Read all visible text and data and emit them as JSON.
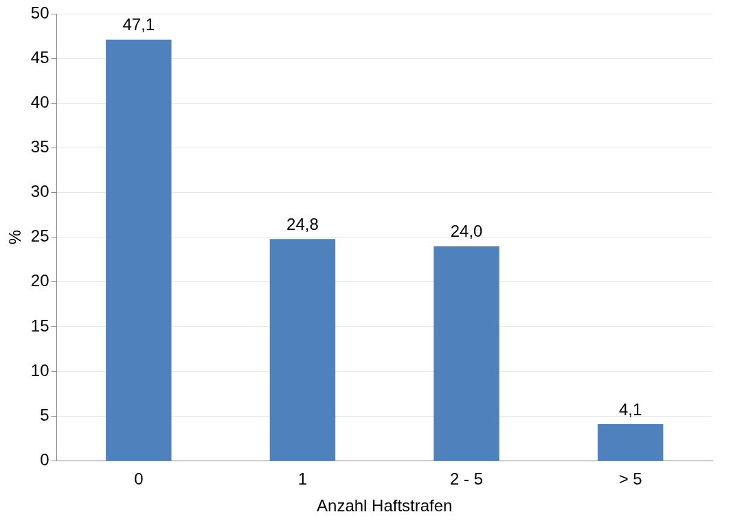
{
  "chart_data": {
    "type": "bar",
    "xlabel": "Anzahl Haftstrafen",
    "ylabel": "%",
    "categories": [
      "0",
      "1",
      "2 - 5",
      "> 5"
    ],
    "values": [
      47.1,
      24.8,
      24.0,
      4.1
    ],
    "value_labels": [
      "47,1",
      "24,8",
      "24,0",
      "4,1"
    ],
    "color": "#4f81bd",
    "ylim": [
      0,
      50
    ],
    "yticks": [
      0,
      5,
      10,
      15,
      20,
      25,
      30,
      35,
      40,
      45,
      50
    ],
    "grid": "y",
    "legend": false
  }
}
